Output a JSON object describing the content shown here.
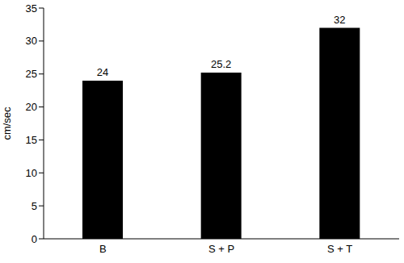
{
  "chart_data": {
    "type": "bar",
    "categories": [
      "B",
      "S + P",
      "S + T"
    ],
    "values": [
      24,
      25.2,
      32
    ],
    "color": "#000000",
    "y_label": "cm/sec",
    "ylim": [
      0,
      35
    ],
    "yticks": [
      0,
      5,
      10,
      15,
      20,
      25,
      30,
      35
    ],
    "grid": false,
    "data_labels": true
  }
}
